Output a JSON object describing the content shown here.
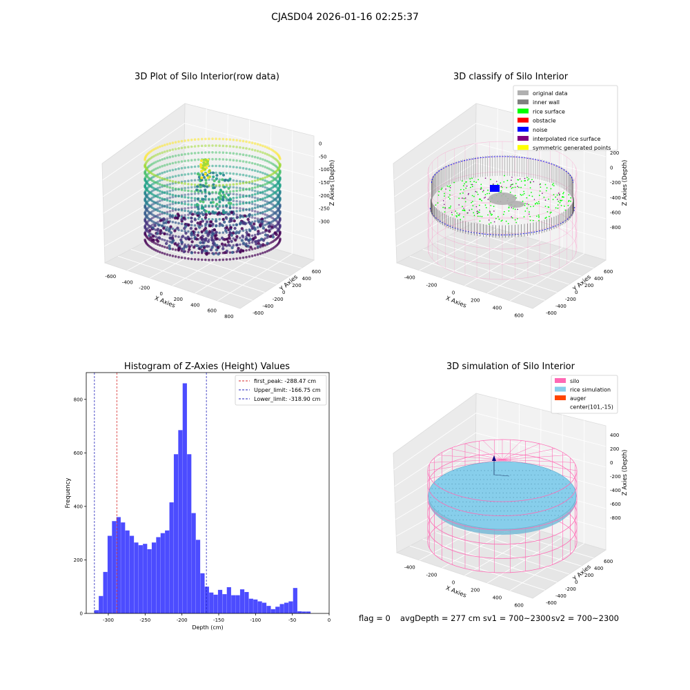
{
  "suptitle": "CJASD04 2026-01-16 02:25:37",
  "status_line": {
    "flag": "flag = 0",
    "avg": "avgDepth = 277 cm",
    "sv1": "sv1 = 700~2300",
    "sv2": "sv2 = 700~2300"
  },
  "colors": {
    "hist_bar": "#4c4cff",
    "first_peak": "#d62728",
    "limit": "#2222bb",
    "silo": "#ff69b4",
    "rice_sim": "#87ceeb",
    "auger": "#ff4500",
    "original": "#b0b0b0",
    "inner_wall": "#808080",
    "rice_surface": "#00ff00",
    "obstacle": "#ff0000",
    "noise": "#0000ff",
    "interp": "#800080",
    "symmetric": "#ffff00"
  },
  "chart_data": [
    {
      "type": "scatter3d",
      "title": "3D Plot of Silo Interior(row data)",
      "xlabel": "X Axies",
      "ylabel": "Y Axies",
      "zlabel": "Z Axies (Depth)",
      "x_ticks": [
        "-600",
        "-400",
        "-200",
        "0",
        "200",
        "400",
        "600",
        "800"
      ],
      "y_ticks": [
        "-600",
        "-400",
        "-200",
        "0",
        "200",
        "400",
        "600"
      ],
      "z_ticks": [
        "0",
        "-50",
        "-100",
        "-150",
        "-200",
        "-250",
        "-300"
      ],
      "xlim": [
        -600,
        800
      ],
      "ylim": [
        -600,
        600
      ],
      "zlim": [
        -320,
        0
      ],
      "colormap": "viridis"
    },
    {
      "type": "scatter3d",
      "title": "3D classify of Silo Interior",
      "xlabel": "X Axies",
      "ylabel": "Y Axies",
      "zlabel": "Z Axies (Depth)",
      "x_ticks": [
        "-400",
        "-200",
        "0",
        "200",
        "400",
        "600"
      ],
      "y_ticks": [
        "-600",
        "-400",
        "-200",
        "0",
        "200",
        "400",
        "600"
      ],
      "z_ticks": [
        "200",
        "0",
        "-200",
        "-400",
        "-600",
        "-800"
      ],
      "z_tick_partial_top": "0",
      "legend_position": "upper-right",
      "legend": [
        {
          "label": "original data",
          "color": "#b0b0b0"
        },
        {
          "label": "inner wall",
          "color": "#808080"
        },
        {
          "label": "rice surface",
          "color": "#00ff00"
        },
        {
          "label": "obstacle",
          "color": "#ff0000"
        },
        {
          "label": "noise",
          "color": "#0000ff"
        },
        {
          "label": "interpolated rice surface",
          "color": "#800080"
        },
        {
          "label": "symmetric generated points",
          "color": "#ffff00"
        }
      ]
    },
    {
      "type": "bar",
      "title": "Histogram of Z-Axies (Height) Values",
      "xlabel": "Depth (cm)",
      "ylabel": "Frequency",
      "xlim": [
        -330,
        0
      ],
      "ylim": [
        0,
        900
      ],
      "x_ticks": [
        -300,
        -250,
        -200,
        -150,
        -100,
        -50,
        0
      ],
      "y_ticks": [
        0,
        200,
        400,
        600,
        800
      ],
      "bin_width": 6,
      "bin_start": -319,
      "values": [
        12,
        65,
        155,
        290,
        345,
        360,
        340,
        310,
        290,
        265,
        255,
        260,
        240,
        265,
        285,
        300,
        310,
        415,
        595,
        685,
        860,
        595,
        375,
        275,
        150,
        100,
        78,
        70,
        88,
        72,
        98,
        68,
        68,
        90,
        80,
        55,
        52,
        45,
        40,
        28,
        16,
        25,
        35,
        40,
        45,
        95,
        8,
        7,
        7
      ],
      "lines": [
        {
          "label": "first_peak: -288.47 cm",
          "value": -288.47,
          "color": "#d62728"
        },
        {
          "label": "Upper_limit: -166.75 cm",
          "value": -166.75,
          "color": "#2222bb"
        },
        {
          "label": "Lower_limit: -318.90 cm",
          "value": -318.9,
          "color": "#2222bb"
        }
      ],
      "legend_position": "top-right"
    },
    {
      "type": "surface3d",
      "title": "3D simulation of Silo Interior",
      "xlabel": "X Axies",
      "ylabel": "Y Axies",
      "zlabel": "Z Axies (Depth)",
      "x_ticks": [
        "-400",
        "-200",
        "0",
        "200",
        "400",
        "600"
      ],
      "y_ticks": [
        "-600",
        "-400",
        "-200",
        "0",
        "200",
        "400",
        "600"
      ],
      "z_ticks": [
        "400",
        "200",
        "0",
        "-200",
        "-400",
        "-600",
        "-800"
      ],
      "legend_position": "upper-right",
      "legend": [
        {
          "label": "silo",
          "color": "#ff69b4"
        },
        {
          "label": "rice simulation",
          "color": "#87ceeb"
        },
        {
          "label": "auger",
          "color": "#ff4500"
        },
        {
          "label": "center(101,-15)",
          "color": ""
        }
      ]
    }
  ]
}
